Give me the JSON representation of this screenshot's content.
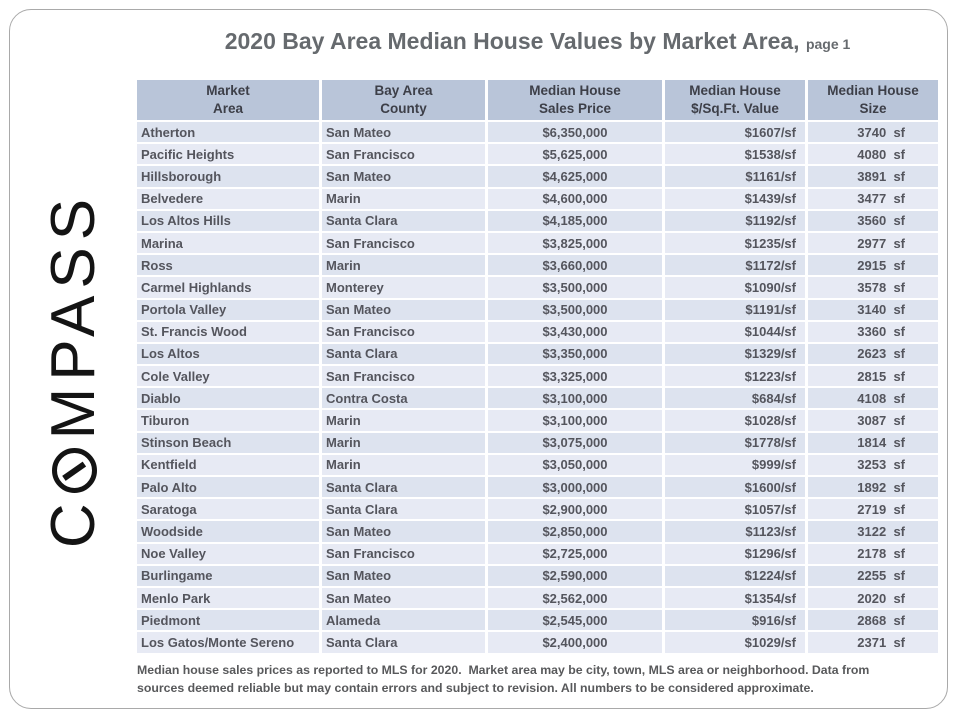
{
  "page": {
    "title_main": "2020 Bay Area Median House Values by Market Area,",
    "title_suffix": "page 1"
  },
  "brand": {
    "name": "COMPASS",
    "logo_prefix": "C",
    "logo_suffix": "MPASS"
  },
  "colors": {
    "header_bg": "#b9c5d9",
    "row_odd": "#dde3ef",
    "row_even": "#e7eaf4",
    "header_text": "#3d3f48",
    "cell_text": "#54555d",
    "title_text": "#666a6e",
    "brand_black": "#141414"
  },
  "table": {
    "headers": [
      "Market\nArea",
      "Bay Area\nCounty",
      "Median House\nSales Price",
      "Median House\n$/Sq.Ft. Value",
      "Median House\nSize"
    ],
    "rows": [
      {
        "market_area": "Atherton",
        "county": "San Mateo",
        "sales_price": "$6,350,000",
        "price_per_sqft": "$1607/sf",
        "size": "3740  sf"
      },
      {
        "market_area": "Pacific Heights",
        "county": "San Francisco",
        "sales_price": "$5,625,000",
        "price_per_sqft": "$1538/sf",
        "size": "4080  sf"
      },
      {
        "market_area": "Hillsborough",
        "county": "San Mateo",
        "sales_price": "$4,625,000",
        "price_per_sqft": "$1161/sf",
        "size": "3891  sf"
      },
      {
        "market_area": "Belvedere",
        "county": "Marin",
        "sales_price": "$4,600,000",
        "price_per_sqft": "$1439/sf",
        "size": "3477  sf"
      },
      {
        "market_area": "Los Altos Hills",
        "county": "Santa Clara",
        "sales_price": "$4,185,000",
        "price_per_sqft": "$1192/sf",
        "size": "3560  sf"
      },
      {
        "market_area": "Marina",
        "county": "San Francisco",
        "sales_price": "$3,825,000",
        "price_per_sqft": "$1235/sf",
        "size": "2977  sf"
      },
      {
        "market_area": "Ross",
        "county": "Marin",
        "sales_price": "$3,660,000",
        "price_per_sqft": "$1172/sf",
        "size": "2915  sf"
      },
      {
        "market_area": "Carmel Highlands",
        "county": "Monterey",
        "sales_price": "$3,500,000",
        "price_per_sqft": "$1090/sf",
        "size": "3578  sf"
      },
      {
        "market_area": "Portola Valley",
        "county": "San Mateo",
        "sales_price": "$3,500,000",
        "price_per_sqft": "$1191/sf",
        "size": "3140  sf"
      },
      {
        "market_area": "St. Francis Wood",
        "county": "San Francisco",
        "sales_price": "$3,430,000",
        "price_per_sqft": "$1044/sf",
        "size": "3360  sf"
      },
      {
        "market_area": "Los Altos",
        "county": "Santa Clara",
        "sales_price": "$3,350,000",
        "price_per_sqft": "$1329/sf",
        "size": "2623  sf"
      },
      {
        "market_area": "Cole Valley",
        "county": "San Francisco",
        "sales_price": "$3,325,000",
        "price_per_sqft": "$1223/sf",
        "size": "2815  sf"
      },
      {
        "market_area": "Diablo",
        "county": "Contra Costa",
        "sales_price": "$3,100,000",
        "price_per_sqft": "$684/sf",
        "size": "4108  sf"
      },
      {
        "market_area": "Tiburon",
        "county": "Marin",
        "sales_price": "$3,100,000",
        "price_per_sqft": "$1028/sf",
        "size": "3087  sf"
      },
      {
        "market_area": "Stinson Beach",
        "county": "Marin",
        "sales_price": "$3,075,000",
        "price_per_sqft": "$1778/sf",
        "size": "1814  sf"
      },
      {
        "market_area": "Kentfield",
        "county": "Marin",
        "sales_price": "$3,050,000",
        "price_per_sqft": "$999/sf",
        "size": "3253  sf"
      },
      {
        "market_area": "Palo Alto",
        "county": "Santa Clara",
        "sales_price": "$3,000,000",
        "price_per_sqft": "$1600/sf",
        "size": "1892  sf"
      },
      {
        "market_area": "Saratoga",
        "county": "Santa Clara",
        "sales_price": "$2,900,000",
        "price_per_sqft": "$1057/sf",
        "size": "2719  sf"
      },
      {
        "market_area": "Woodside",
        "county": "San Mateo",
        "sales_price": "$2,850,000",
        "price_per_sqft": "$1123/sf",
        "size": "3122  sf"
      },
      {
        "market_area": "Noe Valley",
        "county": "San Francisco",
        "sales_price": "$2,725,000",
        "price_per_sqft": "$1296/sf",
        "size": "2178  sf"
      },
      {
        "market_area": "Burlingame",
        "county": "San Mateo",
        "sales_price": "$2,590,000",
        "price_per_sqft": "$1224/sf",
        "size": "2255  sf"
      },
      {
        "market_area": "Menlo Park",
        "county": "San Mateo",
        "sales_price": "$2,562,000",
        "price_per_sqft": "$1354/sf",
        "size": "2020  sf"
      },
      {
        "market_area": "Piedmont",
        "county": "Alameda",
        "sales_price": "$2,545,000",
        "price_per_sqft": "$916/sf",
        "size": "2868  sf"
      },
      {
        "market_area": "Los Gatos/Monte Sereno",
        "county": "Santa Clara",
        "sales_price": "$2,400,000",
        "price_per_sqft": "$1029/sf",
        "size": "2371  sf"
      }
    ]
  },
  "footnote": "Median house sales prices as reported to MLS for 2020.  Market area may be city, town, MLS area or neighborhood. Data from\nsources deemed reliable but may contain errors and subject to revision. All numbers to be considered approximate."
}
